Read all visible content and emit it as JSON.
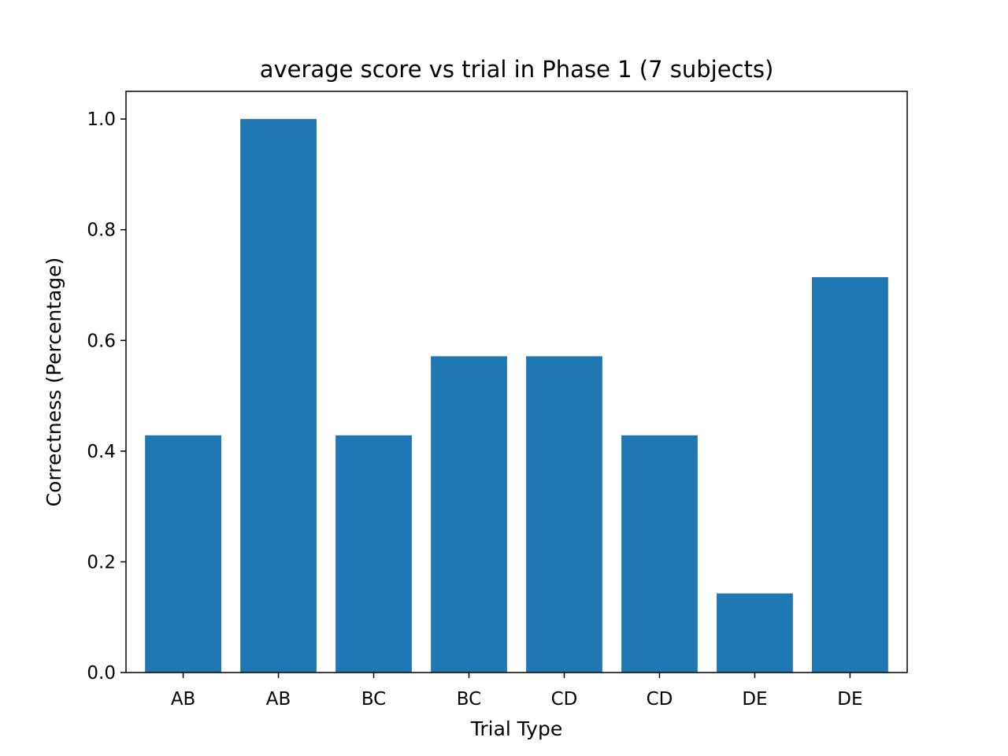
{
  "chart_data": {
    "type": "bar",
    "title": "average score vs trial in Phase 1 (7 subjects)",
    "xlabel": "Trial Type",
    "ylabel": "Correctness (Percentage)",
    "categories": [
      "AB",
      "AB",
      "BC",
      "BC",
      "CD",
      "CD",
      "DE",
      "DE"
    ],
    "values": [
      0.4286,
      1.0,
      0.4286,
      0.5714,
      0.5714,
      0.4286,
      0.1429,
      0.7143
    ],
    "ylim": [
      0,
      1.05
    ],
    "yticks": [
      "0.0",
      "0.2",
      "0.4",
      "0.6",
      "0.8",
      "1.0"
    ],
    "bar_color": "#1f77b4",
    "grid": false,
    "legend": "none"
  }
}
